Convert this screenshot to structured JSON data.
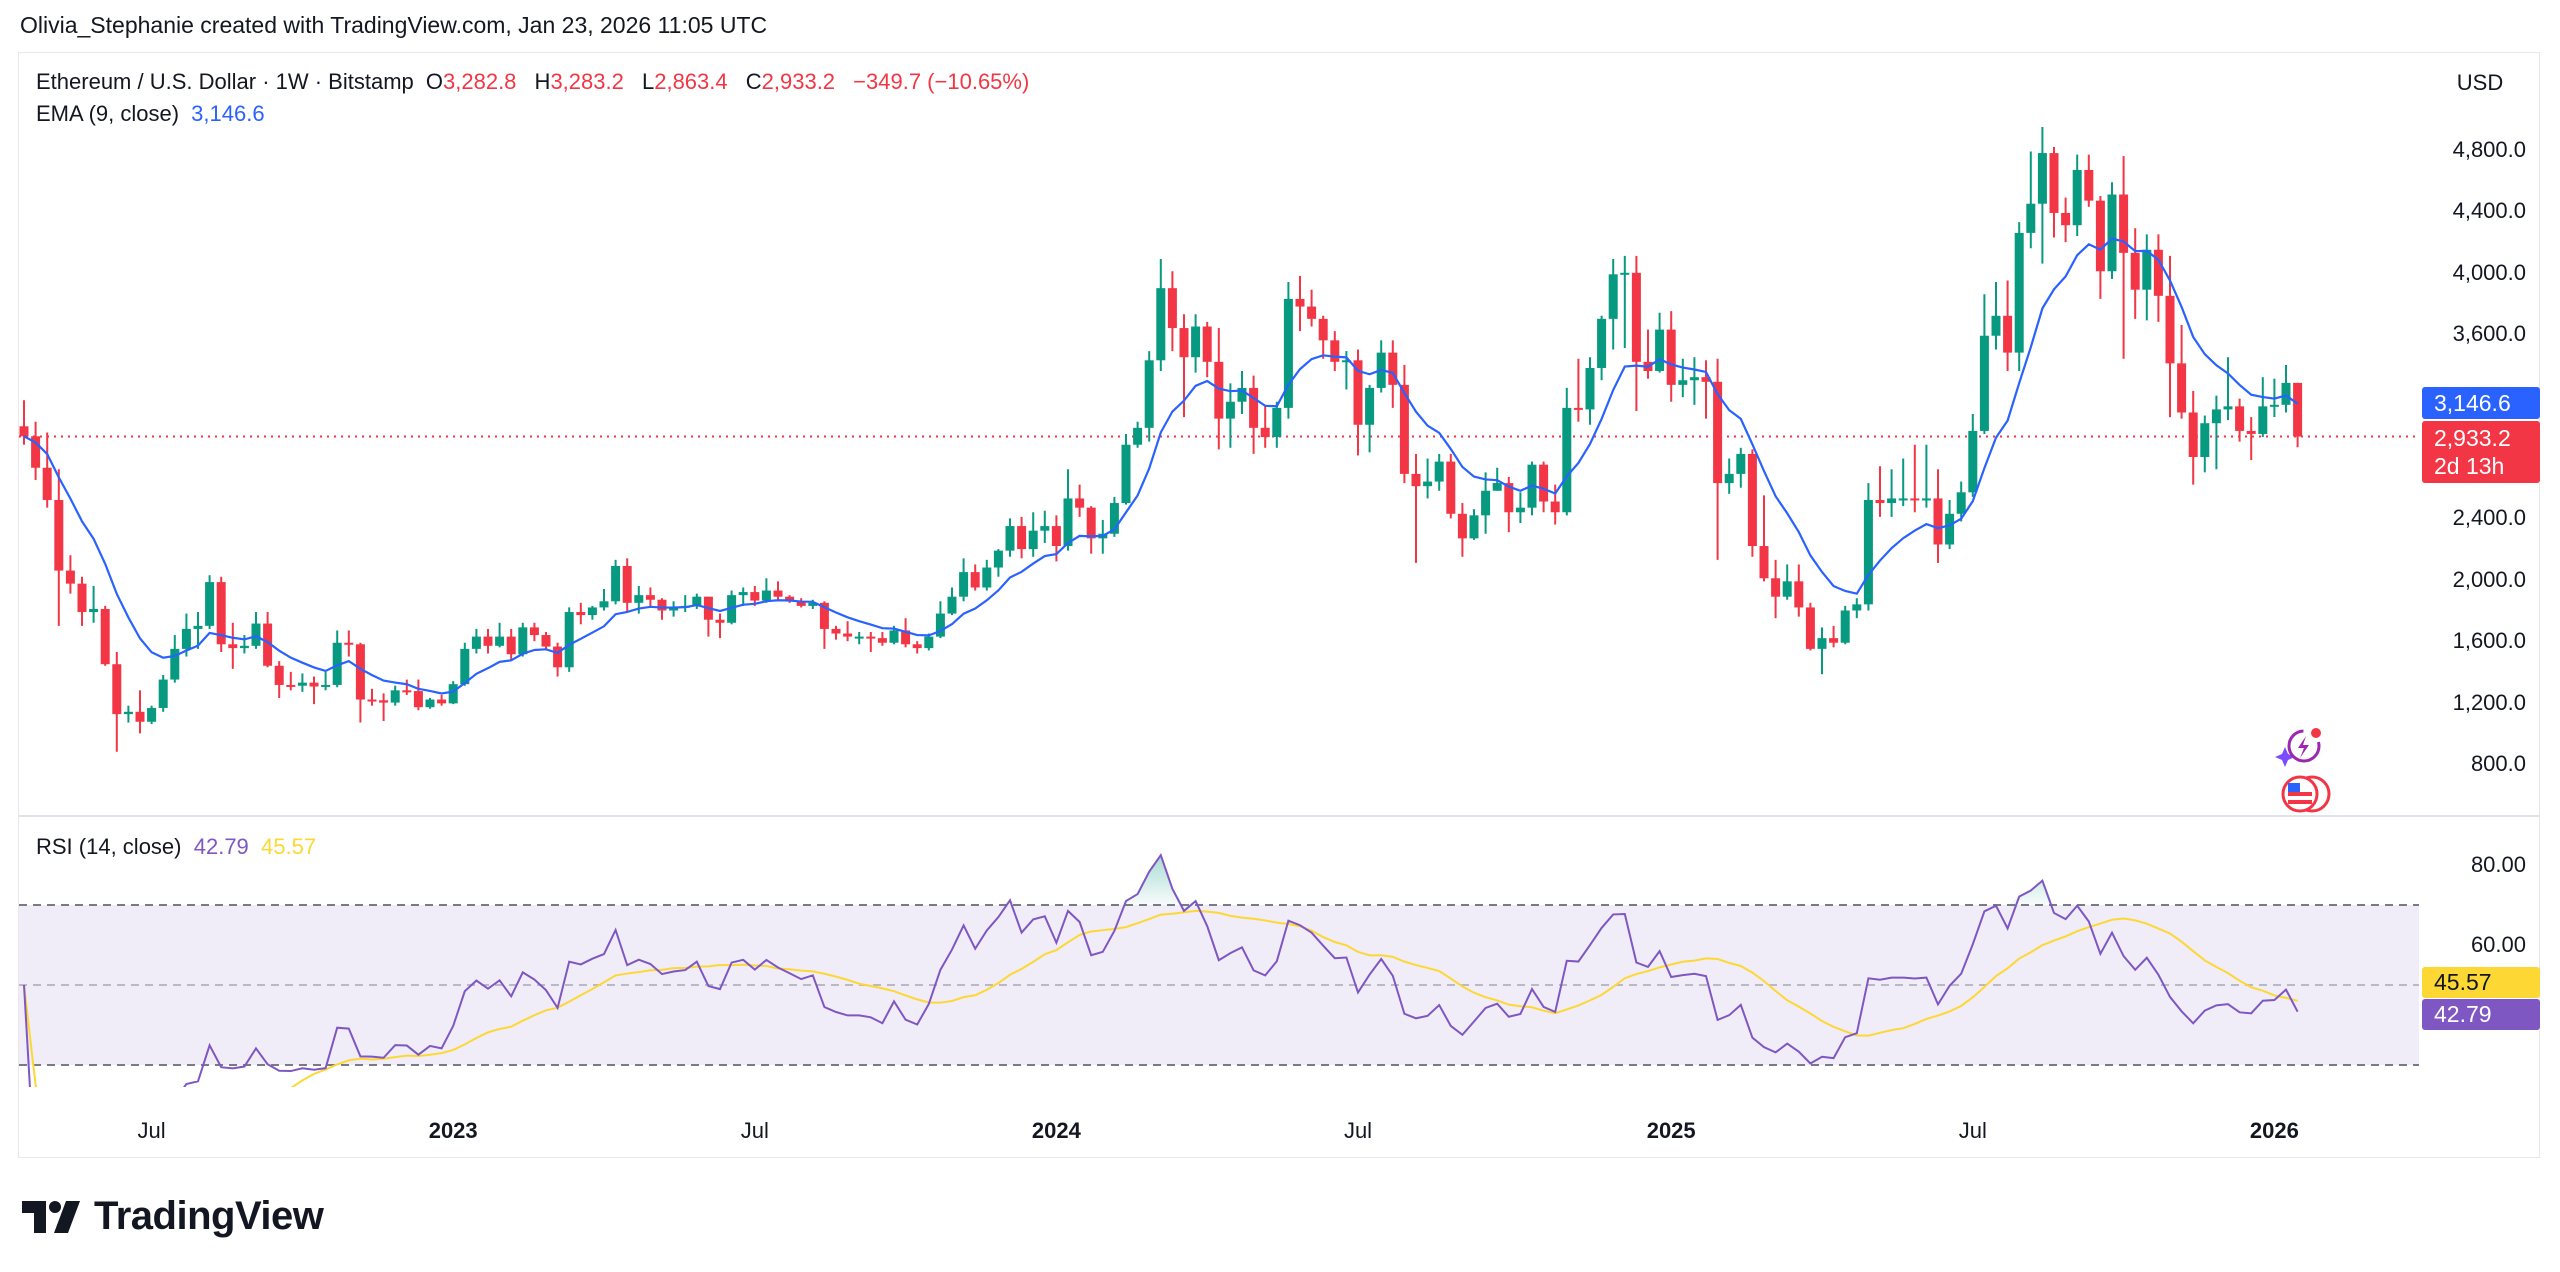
{
  "attribution": "Olivia_Stephanie created with TradingView.com, Jan 23, 2026 11:05 UTC",
  "legend": {
    "symbol": "Ethereum / U.S. Dollar · 1W · Bitstamp",
    "o_label": "O",
    "o": "3,282.8",
    "h_label": "H",
    "h": "3,283.2",
    "l_label": "L",
    "l": "2,863.4",
    "c_label": "C",
    "c": "2,933.2",
    "change": "−349.7 (−10.65%)",
    "ema_label": "EMA (9, close)",
    "ema_value": "3,146.6"
  },
  "currency": "USD",
  "price_axis": [
    "4,800.0",
    "4,400.0",
    "4,000.0",
    "3,600.0",
    "2,400.0",
    "2,000.0",
    "1,600.0",
    "1,200.0",
    "800.0"
  ],
  "badges": {
    "ema": "3,146.6",
    "last_price": "2,933.2",
    "countdown": "2d 13h",
    "rsi_ma": "45.57",
    "rsi": "42.79"
  },
  "rsi_legend": {
    "label": "RSI (14, close)",
    "rsi": "42.79",
    "ma": "45.57"
  },
  "rsi_axis": [
    "80.00",
    "60.00"
  ],
  "time_axis": [
    {
      "label": "Jul",
      "index": 11,
      "year": false
    },
    {
      "label": "2023",
      "index": 37,
      "year": true
    },
    {
      "label": "Jul",
      "index": 63,
      "year": false
    },
    {
      "label": "2024",
      "index": 89,
      "year": true
    },
    {
      "label": "Jul",
      "index": 115,
      "year": false
    },
    {
      "label": "2025",
      "index": 142,
      "year": true
    },
    {
      "label": "Jul",
      "index": 168,
      "year": false
    },
    {
      "label": "2026",
      "index": 194,
      "year": true
    }
  ],
  "logo": "TradingView",
  "colors": {
    "up": "#089981",
    "down": "#f23645",
    "ema": "#2962ff",
    "rsi": "#7e57c2",
    "rsi_ma": "#fdd835",
    "rsi_band": "#f0ecf8"
  },
  "icons": [
    "lightning-sparkle-icon",
    "us-flag-coin-icon"
  ],
  "chart_data": {
    "type": "candlestick",
    "interval": "1W",
    "price_ylim": [
      800,
      4800
    ],
    "last_price": 2933.2,
    "ema": {
      "period": 9,
      "source": "close",
      "last": 3146.6
    },
    "rsi": {
      "period": 14,
      "source": "close",
      "last": 42.79,
      "ma_last": 45.57,
      "levels": [
        70,
        50,
        30
      ],
      "ylim": [
        20,
        90
      ]
    },
    "open": [
      3000,
      2935,
      2730,
      2520,
      2060,
      1975,
      1790,
      1810,
      1450,
      1125,
      1140,
      1075,
      1165,
      1350,
      1550,
      1680,
      1700,
      1985,
      1580,
      1555,
      1570,
      1715,
      1440,
      1315,
      1310,
      1330,
      1305,
      1315,
      1590,
      1580,
      1220,
      1215,
      1200,
      1280,
      1275,
      1170,
      1220,
      1195,
      1320,
      1550,
      1630,
      1570,
      1630,
      1515,
      1690,
      1640,
      1565,
      1430,
      1790,
      1770,
      1820,
      1860,
      2090,
      1850,
      1900,
      1870,
      1800,
      1820,
      1830,
      1890,
      1740,
      1720,
      1900,
      1920,
      1865,
      1930,
      1890,
      1860,
      1830,
      1850,
      1680,
      1650,
      1630,
      1630,
      1620,
      1590,
      1670,
      1580,
      1555,
      1630,
      1780,
      1890,
      2050,
      1950,
      2080,
      2190,
      2350,
      2200,
      2320,
      2350,
      2220,
      2530,
      2470,
      2270,
      2300,
      2500,
      2880,
      2990,
      3430,
      3900,
      3640,
      3450,
      3650,
      3420,
      3050,
      3160,
      3250,
      2990,
      2930,
      3120,
      3830,
      3780,
      3700,
      3560,
      3420,
      3430,
      3010,
      3250,
      3480,
      3270,
      2690,
      2610,
      2640,
      2770,
      2430,
      2270,
      2420,
      2580,
      2630,
      2440,
      2470,
      2750,
      2510,
      2440,
      3120,
      3110,
      3380,
      3700,
      3990,
      4000,
      3420,
      3360,
      3630,
      3270,
      3300,
      3320,
      3290,
      2630,
      2690,
      2820,
      2220,
      2010,
      1890,
      1990,
      1820,
      1550,
      1620,
      1590,
      1800,
      1840,
      2520,
      2500,
      2530,
      2530,
      2520,
      2530,
      2230,
      2430,
      2570,
      2970,
      3590,
      3720,
      3480,
      4260,
      4450,
      4780,
      4390,
      4310,
      4670,
      4470,
      4010,
      4510,
      4130,
      3890,
      4150,
      3850,
      3410,
      3090,
      2800,
      3020,
      3110,
      3130,
      2970,
      2950,
      3130,
      3140,
      3282.8
    ],
    "high": [
      3170,
      3030,
      2960,
      2720,
      2160,
      2020,
      1960,
      1830,
      1530,
      1180,
      1280,
      1180,
      1380,
      1640,
      1780,
      1790,
      2030,
      2020,
      1720,
      1640,
      1790,
      1790,
      1470,
      1400,
      1390,
      1370,
      1400,
      1670,
      1670,
      1590,
      1290,
      1260,
      1310,
      1350,
      1350,
      1230,
      1250,
      1340,
      1590,
      1680,
      1680,
      1720,
      1680,
      1720,
      1720,
      1660,
      1590,
      1820,
      1850,
      1830,
      1940,
      2130,
      2140,
      1960,
      1950,
      1880,
      1860,
      1900,
      1910,
      1890,
      1780,
      1930,
      1950,
      1960,
      2010,
      1990,
      1900,
      1880,
      1870,
      1860,
      1700,
      1730,
      1660,
      1660,
      1660,
      1700,
      1750,
      1600,
      1650,
      1860,
      1950,
      2140,
      2100,
      2130,
      2200,
      2400,
      2410,
      2440,
      2450,
      2420,
      2720,
      2620,
      2480,
      2390,
      2540,
      2950,
      3030,
      3490,
      4090,
      4010,
      3730,
      3730,
      3680,
      3640,
      3280,
      3360,
      3330,
      3130,
      3160,
      3940,
      3980,
      3890,
      3720,
      3620,
      3490,
      3500,
      3270,
      3560,
      3560,
      3400,
      2820,
      2790,
      2820,
      2820,
      2500,
      2460,
      2700,
      2730,
      2670,
      2570,
      2770,
      2770,
      2620,
      3250,
      3440,
      3450,
      3720,
      4090,
      4110,
      4110,
      3630,
      3740,
      3750,
      3440,
      3450,
      3430,
      3440,
      2790,
      2860,
      2850,
      2550,
      2130,
      2100,
      2100,
      1850,
      1690,
      1700,
      1830,
      1880,
      2630,
      2740,
      2720,
      2790,
      2880,
      2880,
      2720,
      2520,
      2640,
      3080,
      3860,
      3940,
      3950,
      4330,
      4790,
      4950,
      4820,
      4490,
      4770,
      4770,
      4500,
      4590,
      4760,
      4290,
      4250,
      4250,
      4110,
      3660,
      3230,
      3070,
      3200,
      3450,
      3180,
      3060,
      3320,
      3310,
      3400,
      3283.2
    ],
    "low": [
      2880,
      2650,
      2470,
      1700,
      1910,
      1700,
      1720,
      1440,
      880,
      1070,
      1000,
      1060,
      1140,
      1330,
      1500,
      1550,
      1680,
      1530,
      1420,
      1520,
      1550,
      1430,
      1230,
      1280,
      1270,
      1190,
      1280,
      1300,
      1500,
      1070,
      1180,
      1080,
      1180,
      1250,
      1150,
      1160,
      1180,
      1190,
      1310,
      1520,
      1520,
      1560,
      1480,
      1500,
      1600,
      1550,
      1370,
      1400,
      1710,
      1740,
      1800,
      1840,
      1790,
      1780,
      1820,
      1740,
      1760,
      1790,
      1810,
      1630,
      1620,
      1710,
      1830,
      1830,
      1850,
      1860,
      1850,
      1820,
      1810,
      1550,
      1610,
      1600,
      1580,
      1530,
      1570,
      1580,
      1560,
      1520,
      1540,
      1620,
      1770,
      1860,
      1930,
      1930,
      2020,
      2150,
      2140,
      2150,
      2240,
      2120,
      2190,
      2410,
      2170,
      2170,
      2280,
      2490,
      2860,
      2900,
      3360,
      3490,
      3060,
      3350,
      3320,
      2850,
      2860,
      3080,
      2820,
      2860,
      2860,
      3050,
      3620,
      3650,
      3440,
      3360,
      3240,
      2810,
      2830,
      3220,
      3120,
      2630,
      2110,
      2530,
      2580,
      2400,
      2150,
      2260,
      2300,
      2580,
      2310,
      2370,
      2420,
      2440,
      2360,
      2420,
      3030,
      3010,
      3300,
      3500,
      3510,
      3100,
      3310,
      3350,
      3160,
      3190,
      3140,
      3050,
      2130,
      2560,
      2600,
      2150,
      1990,
      1750,
      1870,
      1760,
      1540,
      1385,
      1560,
      1580,
      1750,
      1800,
      2410,
      2410,
      2480,
      2440,
      2470,
      2110,
      2200,
      2380,
      2540,
      2950,
      3500,
      3360,
      3360,
      4160,
      4060,
      4230,
      4200,
      4240,
      4430,
      3830,
      3960,
      3440,
      3700,
      3690,
      3680,
      3060,
      3050,
      2620,
      2700,
      2720,
      3040,
      2900,
      2780,
      2930,
      3060,
      3090,
      2863.4
    ],
    "close": [
      2935,
      2730,
      2520,
      2060,
      1975,
      1790,
      1810,
      1450,
      1125,
      1140,
      1075,
      1165,
      1350,
      1550,
      1680,
      1700,
      1985,
      1580,
      1555,
      1570,
      1715,
      1440,
      1315,
      1310,
      1330,
      1305,
      1315,
      1590,
      1580,
      1220,
      1215,
      1200,
      1280,
      1275,
      1170,
      1220,
      1195,
      1320,
      1550,
      1630,
      1570,
      1630,
      1515,
      1690,
      1640,
      1565,
      1430,
      1790,
      1770,
      1820,
      1860,
      2090,
      1850,
      1900,
      1870,
      1800,
      1820,
      1830,
      1890,
      1740,
      1720,
      1900,
      1920,
      1865,
      1930,
      1890,
      1860,
      1830,
      1850,
      1680,
      1650,
      1630,
      1630,
      1620,
      1590,
      1670,
      1580,
      1555,
      1630,
      1780,
      1890,
      2050,
      1950,
      2080,
      2190,
      2350,
      2200,
      2320,
      2350,
      2220,
      2530,
      2470,
      2270,
      2300,
      2500,
      2880,
      2990,
      3430,
      3900,
      3640,
      3450,
      3650,
      3420,
      3050,
      3160,
      3250,
      2990,
      2930,
      3120,
      3830,
      3780,
      3700,
      3560,
      3420,
      3430,
      3010,
      3250,
      3480,
      3270,
      2690,
      2610,
      2640,
      2770,
      2430,
      2270,
      2420,
      2580,
      2630,
      2440,
      2470,
      2750,
      2510,
      2440,
      3120,
      3110,
      3380,
      3700,
      3990,
      4000,
      3420,
      3360,
      3630,
      3270,
      3300,
      3320,
      3290,
      2630,
      2690,
      2820,
      2220,
      2010,
      1890,
      1990,
      1820,
      1550,
      1620,
      1590,
      1800,
      1840,
      2520,
      2500,
      2530,
      2530,
      2520,
      2530,
      2230,
      2430,
      2570,
      2970,
      3590,
      3720,
      3480,
      4260,
      4450,
      4780,
      4390,
      4310,
      4670,
      4470,
      4010,
      4510,
      4130,
      3890,
      4150,
      3850,
      3410,
      3090,
      2800,
      3020,
      3110,
      3130,
      2970,
      2950,
      3130,
      3140,
      3282.8,
      2933.2
    ]
  }
}
